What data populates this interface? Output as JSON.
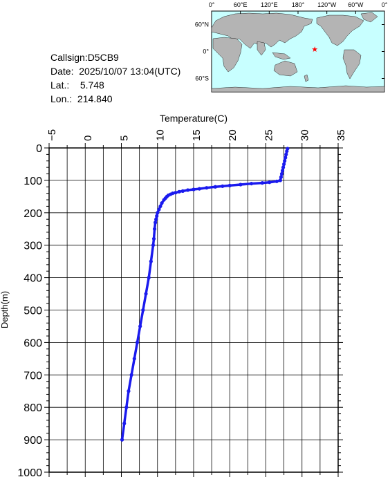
{
  "station": {
    "callsign_line": "Callsign:D5CB9",
    "date_label": "Date:",
    "date_value": "2025/10/07 13:04(UTC)",
    "lat_label": "Lat.:",
    "lat_value": "5.748",
    "lon_label": "Lon.:",
    "lon_value": "214.840"
  },
  "map": {
    "top_labels": [
      "0°",
      "60°E",
      "120°E",
      "180°",
      "120°W",
      "60°W",
      "0°"
    ],
    "side_labels": [
      "60°N",
      "0°",
      "60°S"
    ],
    "ocean_color": "#c8ffff",
    "land_color": "#b4b4b4",
    "marker_color": "#ff0000",
    "marker_icon": "star-icon",
    "marker_lon": 214.84,
    "marker_lat": 5.748
  },
  "chart_data": {
    "type": "line",
    "xlabel": "Temperature(C)",
    "ylabel": "Depth(m)",
    "xlim": [
      -5,
      35
    ],
    "ylim": [
      1000,
      0
    ],
    "xticks": [
      "−5",
      "0",
      "5",
      "10",
      "15",
      "20",
      "25",
      "30",
      "35"
    ],
    "yticks": [
      "0",
      "100",
      "200",
      "300",
      "400",
      "500",
      "600",
      "700",
      "800",
      "900",
      "1000"
    ],
    "grid": true,
    "series_color": "#1a1aee",
    "series": [
      {
        "depth": [
          2,
          10,
          20,
          30,
          40,
          50,
          60,
          70,
          80,
          90,
          100,
          103,
          106,
          108,
          110,
          113,
          116,
          118,
          120,
          123,
          126,
          128,
          130,
          133,
          135,
          138,
          140,
          143,
          146,
          150,
          155,
          160,
          170,
          180,
          190,
          200,
          210,
          220,
          230,
          250,
          280,
          300,
          350,
          400,
          450,
          500,
          550,
          600,
          650,
          700,
          750,
          800,
          850,
          900
        ],
        "temperature": [
          28.0,
          27.9,
          27.8,
          27.7,
          27.6,
          27.5,
          27.4,
          27.3,
          27.2,
          27.1,
          27.0,
          26.5,
          25.5,
          24.5,
          23.0,
          21.5,
          20.0,
          19.0,
          18.0,
          16.8,
          15.8,
          15.0,
          14.2,
          13.5,
          13.0,
          12.5,
          12.1,
          11.8,
          11.5,
          11.3,
          11.1,
          10.9,
          10.6,
          10.4,
          10.2,
          10.0,
          9.9,
          9.8,
          9.7,
          9.6,
          9.5,
          9.4,
          9.1,
          8.8,
          8.4,
          8.0,
          7.6,
          7.2,
          6.8,
          6.4,
          6.0,
          5.7,
          5.4,
          5.1
        ]
      }
    ]
  }
}
